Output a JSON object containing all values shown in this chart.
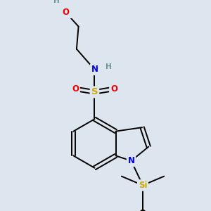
{
  "background_color": "#dde5ee",
  "atom_colors": {
    "C": "#000000",
    "H": "#6a9595",
    "N": "#0000ee",
    "O": "#ee0000",
    "S": "#ccaa00",
    "Si": "#ccaa00"
  },
  "font_size": 8.5,
  "bond_color": "#000000",
  "bond_lw": 1.4
}
